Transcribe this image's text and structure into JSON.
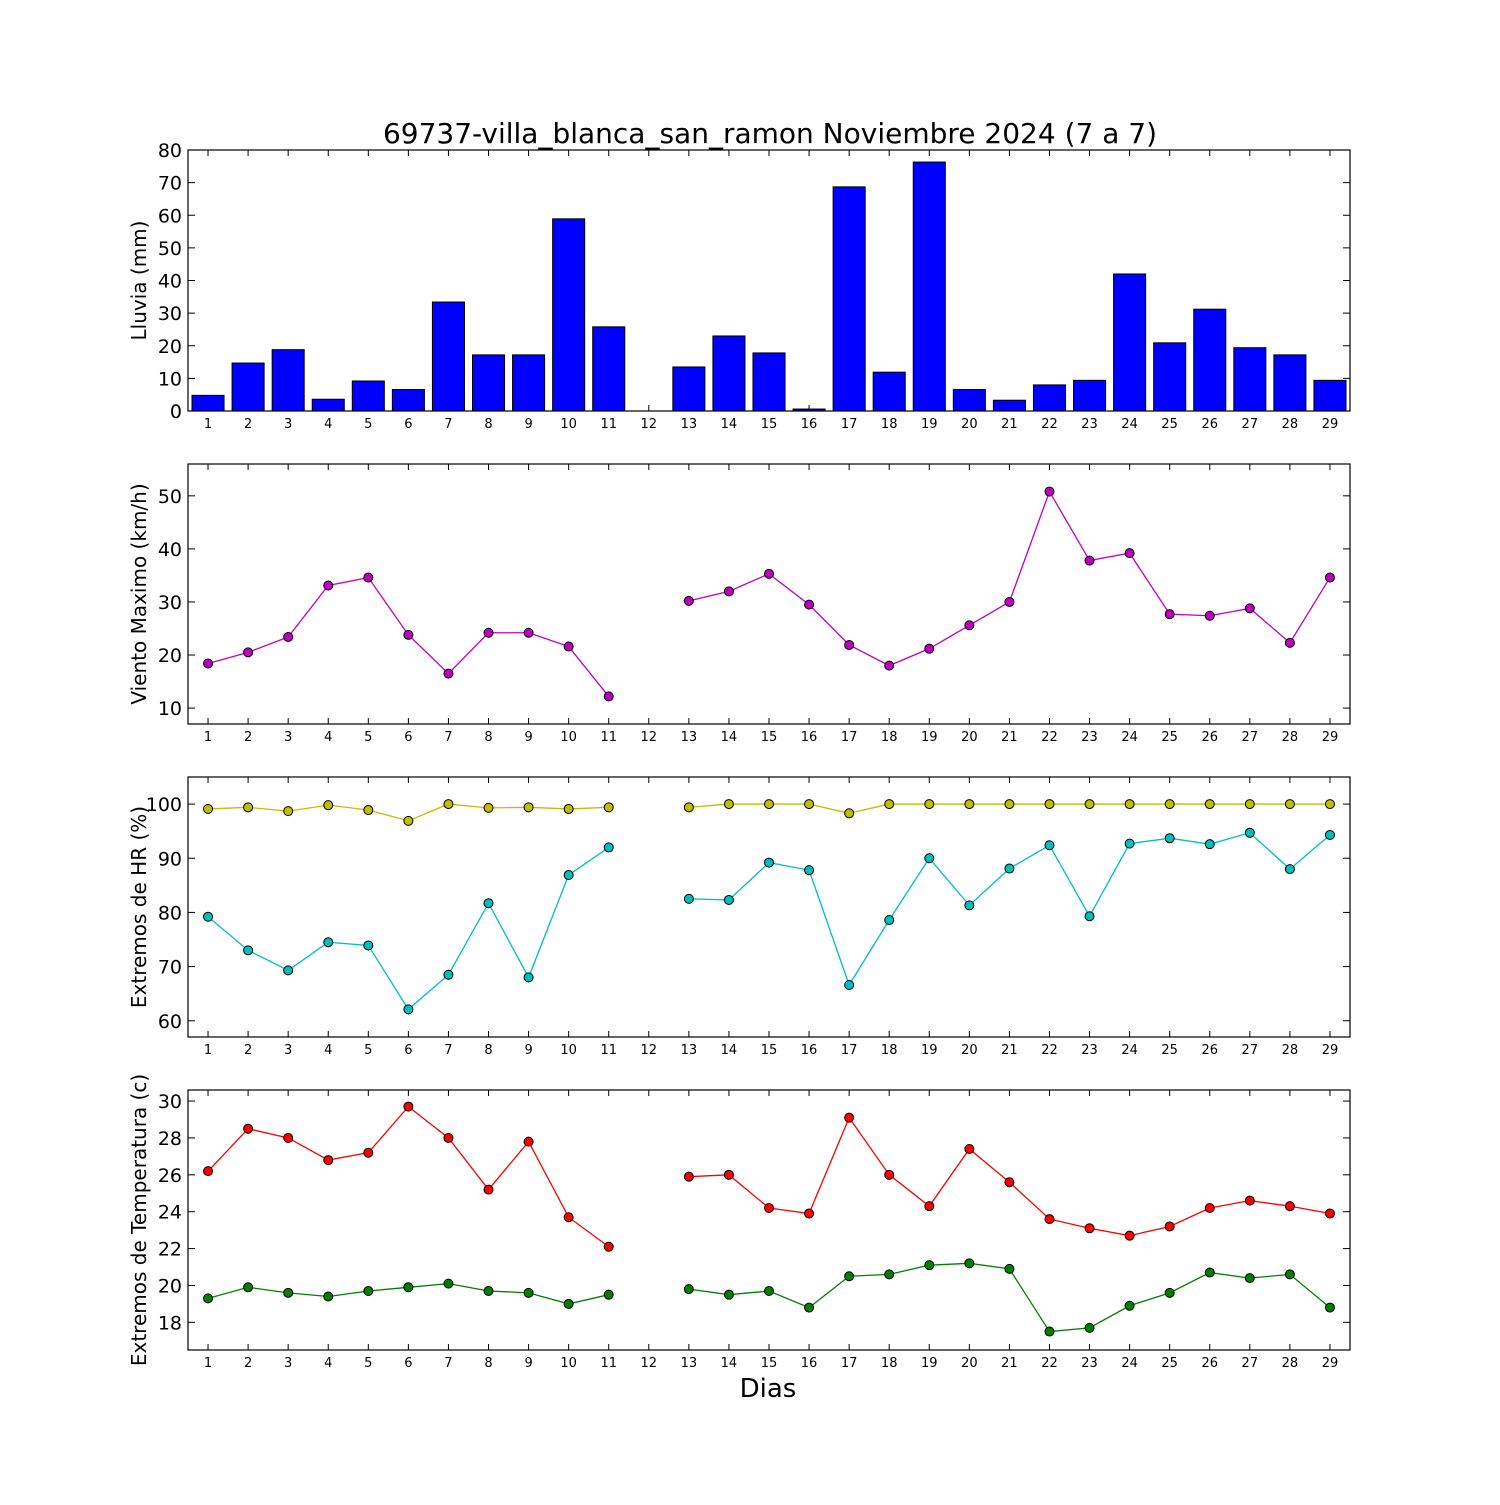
{
  "title": "69737-villa_blanca_san_ramon Noviembre 2024  (7 a 7)",
  "xlabel": "Dias",
  "chart_data": [
    {
      "type": "bar",
      "ylabel": "Lluvia (mm)",
      "ylim": [
        0,
        80
      ],
      "yticks": [
        0,
        10,
        20,
        30,
        40,
        50,
        60,
        70,
        80
      ],
      "categories": [
        1,
        2,
        3,
        4,
        5,
        6,
        7,
        8,
        9,
        10,
        11,
        12,
        13,
        14,
        15,
        16,
        17,
        18,
        19,
        20,
        21,
        22,
        23,
        24,
        25,
        26,
        27,
        28,
        29
      ],
      "color": "#0000ff",
      "values": [
        4.8,
        14.7,
        18.8,
        3.6,
        9.2,
        6.6,
        33.4,
        17.2,
        17.2,
        58.9,
        25.8,
        0,
        13.5,
        23.0,
        17.8,
        0.6,
        68.7,
        11.9,
        76.3,
        6.6,
        3.3,
        8.0,
        9.4,
        42.0,
        20.9,
        31.2,
        19.4,
        17.2,
        9.4
      ]
    },
    {
      "type": "line",
      "ylabel": "Viento Maximo (km/h)",
      "ylim": [
        7,
        56
      ],
      "yticks": [
        10,
        20,
        30,
        40,
        50
      ],
      "x": [
        1,
        2,
        3,
        4,
        5,
        6,
        7,
        8,
        9,
        10,
        11,
        12,
        13,
        14,
        15,
        16,
        17,
        18,
        19,
        20,
        21,
        22,
        23,
        24,
        25,
        26,
        27,
        28,
        29
      ],
      "series": [
        {
          "color": "#bf00bf",
          "values": [
            18.4,
            20.5,
            23.4,
            33.1,
            34.6,
            23.8,
            16.5,
            24.2,
            24.2,
            21.6,
            12.2,
            null,
            30.2,
            32.0,
            35.3,
            29.5,
            21.9,
            18.0,
            21.2,
            25.6,
            30.0,
            50.8,
            37.8,
            39.2,
            27.7,
            27.4,
            28.8,
            22.3,
            34.6
          ]
        }
      ]
    },
    {
      "type": "line",
      "ylabel": "Extremos de HR (%)",
      "ylim": [
        57,
        105
      ],
      "yticks": [
        60,
        70,
        80,
        90,
        100
      ],
      "x": [
        1,
        2,
        3,
        4,
        5,
        6,
        7,
        8,
        9,
        10,
        11,
        12,
        13,
        14,
        15,
        16,
        17,
        18,
        19,
        20,
        21,
        22,
        23,
        24,
        25,
        26,
        27,
        28,
        29
      ],
      "series": [
        {
          "color": "#bfbf00",
          "values": [
            99.1,
            99.4,
            98.7,
            99.8,
            98.9,
            96.9,
            100,
            99.3,
            99.4,
            99.1,
            99.4,
            null,
            99.4,
            100,
            100,
            100,
            98.3,
            100,
            100,
            100,
            100,
            100,
            100,
            100,
            100,
            100,
            100,
            100,
            100
          ]
        },
        {
          "color": "#00bfbf",
          "values": [
            79.2,
            73.0,
            69.3,
            74.5,
            73.9,
            62.1,
            68.5,
            81.7,
            68.0,
            86.9,
            92.0,
            null,
            82.5,
            82.3,
            89.2,
            87.8,
            66.6,
            78.6,
            90.0,
            81.3,
            88.1,
            92.4,
            79.3,
            92.7,
            93.7,
            92.6,
            94.7,
            88.0,
            94.3
          ]
        }
      ]
    },
    {
      "type": "line",
      "ylabel": "Extremos de Temperatura (c)",
      "ylim": [
        16.5,
        30.6
      ],
      "yticks": [
        18,
        20,
        22,
        24,
        26,
        28,
        30
      ],
      "x": [
        1,
        2,
        3,
        4,
        5,
        6,
        7,
        8,
        9,
        10,
        11,
        12,
        13,
        14,
        15,
        16,
        17,
        18,
        19,
        20,
        21,
        22,
        23,
        24,
        25,
        26,
        27,
        28,
        29
      ],
      "series": [
        {
          "color": "#ff0000",
          "values": [
            26.2,
            28.5,
            28.0,
            26.8,
            27.2,
            29.7,
            28.0,
            25.2,
            27.8,
            23.7,
            22.1,
            null,
            25.9,
            26.0,
            24.2,
            23.9,
            29.1,
            26.0,
            24.3,
            27.4,
            25.6,
            23.6,
            23.1,
            22.7,
            23.2,
            24.2,
            24.6,
            24.3,
            23.9
          ]
        },
        {
          "color": "#008000",
          "values": [
            19.3,
            19.9,
            19.6,
            19.4,
            19.7,
            19.9,
            20.1,
            19.7,
            19.6,
            19.0,
            19.5,
            null,
            19.8,
            19.5,
            19.7,
            18.8,
            20.5,
            20.6,
            21.1,
            21.2,
            20.9,
            17.5,
            17.7,
            18.9,
            19.6,
            20.7,
            20.4,
            20.6,
            18.8
          ]
        }
      ]
    }
  ]
}
